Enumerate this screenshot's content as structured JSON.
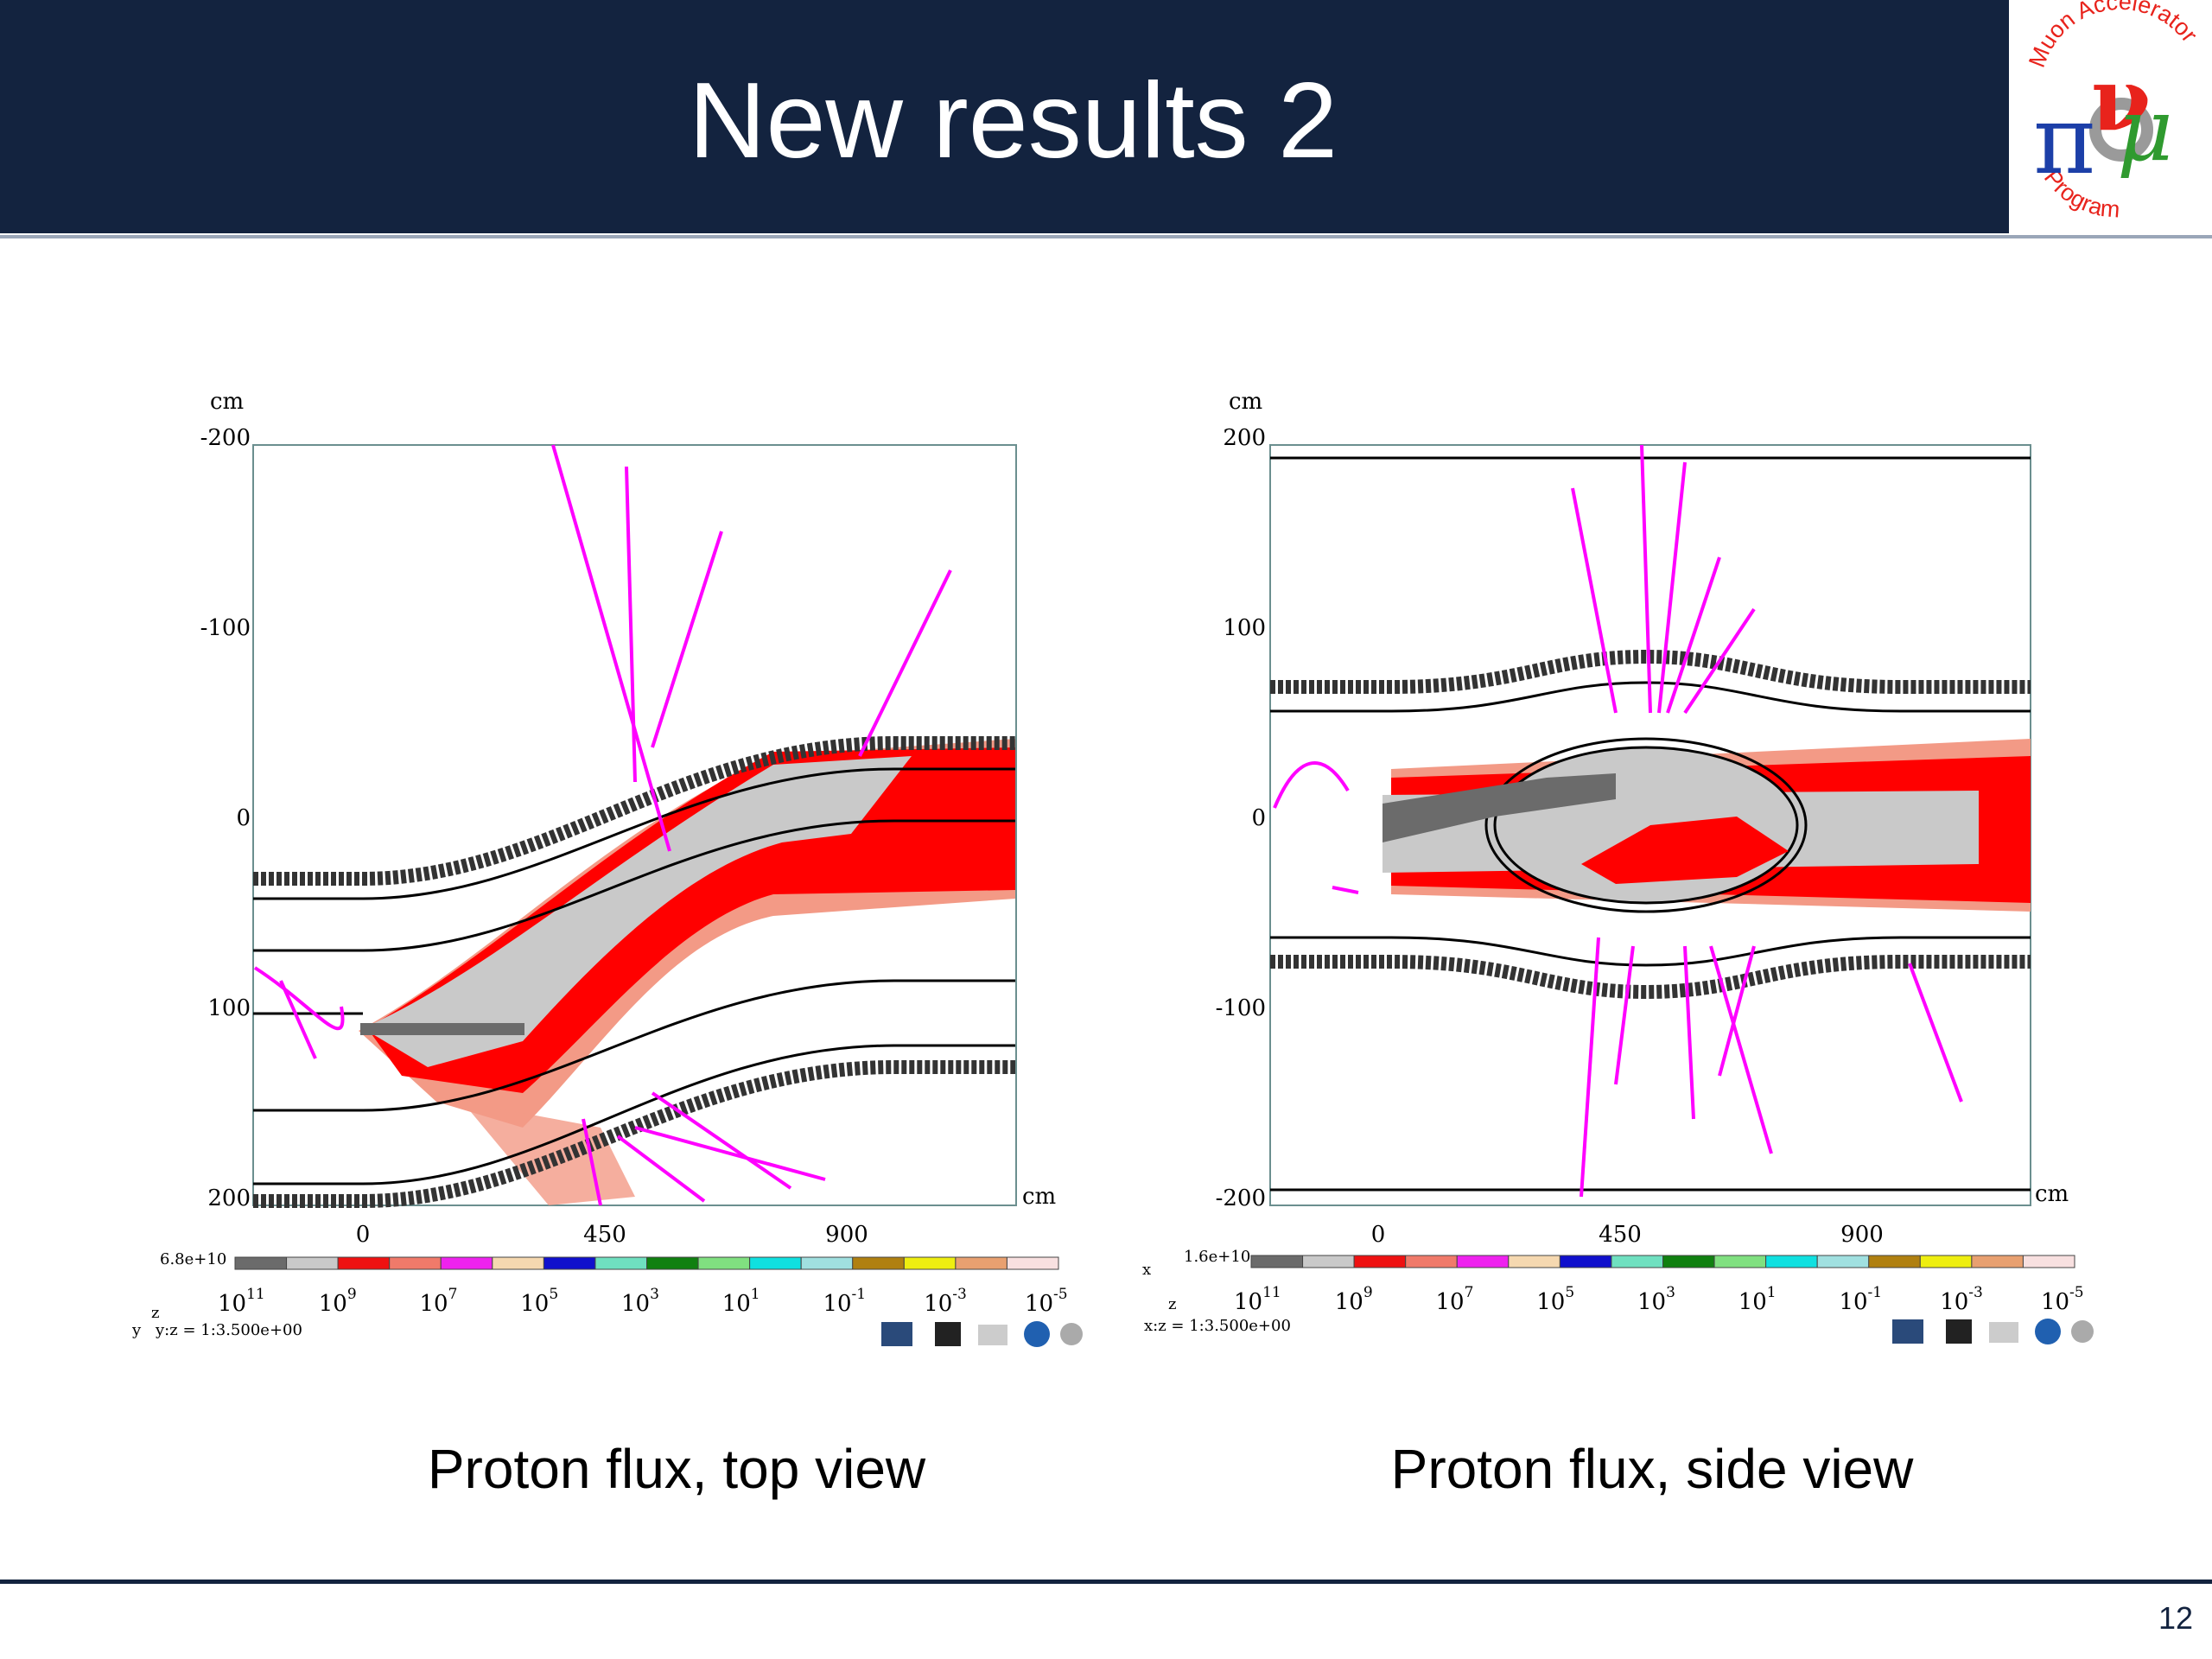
{
  "slide": {
    "title": "New results 2",
    "page_number": "12"
  },
  "logo": {
    "top_text": "Muon Accelerator",
    "bottom_text": "Program",
    "glyphs": "πνμ",
    "colors": {
      "red": "#e8231c",
      "blue": "#1c3fa8",
      "green": "#2f9a2f",
      "grey": "#9a9a9a"
    }
  },
  "panels": [
    {
      "key": "top",
      "caption": "Proton flux, top view",
      "y_unit": "cm",
      "x_unit": "cm",
      "y_ticks": [
        "-200",
        "-100",
        "0",
        "100",
        "200"
      ],
      "x_ticks": [
        "0",
        "450",
        "900"
      ],
      "max_label": "6.8e+10",
      "axis_h": "z",
      "axis_v": "y",
      "ratio": "y:z = 1:3.500e+00"
    },
    {
      "key": "side",
      "caption": "Proton flux, side view",
      "y_unit": "cm",
      "x_unit": "cm",
      "y_ticks": [
        "200",
        "100",
        "0",
        "-100",
        "-200"
      ],
      "x_ticks": [
        "0",
        "450",
        "900"
      ],
      "max_label": "1.6e+10",
      "axis_h": "z",
      "axis_v": "x",
      "ratio": "x:z = 1:3.500e+00"
    }
  ],
  "colorbar": {
    "colors": [
      "#6b6b6b",
      "#c9c9c9",
      "#ee1111",
      "#f07a6a",
      "#ee22ee",
      "#f5d8b0",
      "#1010cc",
      "#6fe0c0",
      "#108010",
      "#80e080",
      "#10e0e0",
      "#a0e0e0",
      "#b08010",
      "#eeee10",
      "#e8a070",
      "#f8e0e0"
    ],
    "label_bases": [
      "10",
      "10",
      "10",
      "10",
      "10",
      "10",
      "10",
      "10",
      "10"
    ],
    "label_exponents": [
      "11",
      "9",
      "7",
      "5",
      "3",
      "1",
      "-1",
      "-3",
      "-5"
    ]
  },
  "colors": {
    "header_bg": "#13233f",
    "flux_grey": "#c9c9c9",
    "flux_dark": "#6b6b6b",
    "flux_red": "#ff0000",
    "flux_salmon": "#f39a86",
    "flux_magenta": "#ff00ff"
  }
}
